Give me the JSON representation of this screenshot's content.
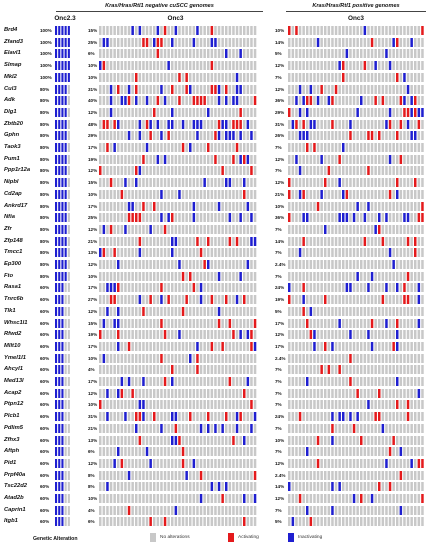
{
  "left_group_title": "Kras/Hras/Rtl1 negative cuSCC genomes",
  "right_group_title": "Kras/Hras/Rtl1 positive genomes",
  "columns": {
    "onc23": "Onc2.3",
    "onc3_left": "Onc3",
    "onc3_right": "Onc3"
  },
  "colors": {
    "none": "#c8c8c8",
    "activating": "#e41a1c",
    "inactivating": "#1f1fd0"
  },
  "legend": {
    "title": "Genetic Alteration",
    "items": [
      {
        "label": "No alterations",
        "color": "#c8c8c8"
      },
      {
        "label": "Activating",
        "color": "#e41a1c"
      },
      {
        "label": "Inactivating",
        "color": "#1f1fd0"
      }
    ]
  },
  "rows": [
    {
      "gene": "Brd4",
      "onc23_pct": "100%",
      "onc3_left_pct": "15%",
      "onc3_right_pct": "10%"
    },
    {
      "gene": "Zfand3",
      "onc23_pct": "100%",
      "onc3_left_pct": "25%",
      "onc3_right_pct": "14%"
    },
    {
      "gene": "Elavl1",
      "onc23_pct": "100%",
      "onc3_left_pct": "6%",
      "onc3_right_pct": "5%"
    },
    {
      "gene": "Slmap",
      "onc23_pct": "100%",
      "onc3_left_pct": "10%",
      "onc3_right_pct": "12%"
    },
    {
      "gene": "Mkl2",
      "onc23_pct": "100%",
      "onc3_left_pct": "10%",
      "onc3_right_pct": "7%"
    },
    {
      "gene": "Cul3",
      "onc23_pct": "80%",
      "onc3_left_pct": "31%",
      "onc3_right_pct": "12%"
    },
    {
      "gene": "Adk",
      "onc23_pct": "80%",
      "onc3_left_pct": "40%",
      "onc3_right_pct": "36%"
    },
    {
      "gene": "Dlg1",
      "onc23_pct": "80%",
      "onc3_left_pct": "12%",
      "onc3_right_pct": "29%"
    },
    {
      "gene": "Zbtb20",
      "onc23_pct": "80%",
      "onc3_left_pct": "48%",
      "onc3_right_pct": "31%"
    },
    {
      "gene": "Gphn",
      "onc23_pct": "80%",
      "onc3_left_pct": "29%",
      "onc3_right_pct": "26%"
    },
    {
      "gene": "Taok3",
      "onc23_pct": "80%",
      "onc3_left_pct": "17%",
      "onc3_right_pct": "7%"
    },
    {
      "gene": "Pum1",
      "onc23_pct": "80%",
      "onc3_left_pct": "19%",
      "onc3_right_pct": "12%"
    },
    {
      "gene": "Ppp1r12a",
      "onc23_pct": "80%",
      "onc3_left_pct": "12%",
      "onc3_right_pct": "7%"
    },
    {
      "gene": "Nipbl",
      "onc23_pct": "80%",
      "onc3_left_pct": "15%",
      "onc3_right_pct": "12%"
    },
    {
      "gene": "Cd2ap",
      "onc23_pct": "80%",
      "onc3_left_pct": "10%",
      "onc3_right_pct": "21%"
    },
    {
      "gene": "Ankrd17",
      "onc23_pct": "80%",
      "onc3_left_pct": "17%",
      "onc3_right_pct": "10%"
    },
    {
      "gene": "Nfia",
      "onc23_pct": "80%",
      "onc3_left_pct": "25%",
      "onc3_right_pct": "36%"
    },
    {
      "gene": "Zfr",
      "onc23_pct": "80%",
      "onc3_left_pct": "12%",
      "onc3_right_pct": "7%"
    },
    {
      "gene": "Zfp148",
      "onc23_pct": "80%",
      "onc3_left_pct": "21%",
      "onc3_right_pct": "14%"
    },
    {
      "gene": "Tmcc1",
      "onc23_pct": "80%",
      "onc3_left_pct": "13%",
      "onc3_right_pct": "7%"
    },
    {
      "gene": "Ep300",
      "onc23_pct": "80%",
      "onc3_left_pct": "12%",
      "onc3_right_pct": "2.4%"
    },
    {
      "gene": "Fto",
      "onc23_pct": "80%",
      "onc3_left_pct": "10%",
      "onc3_right_pct": "7%"
    },
    {
      "gene": "Rasa1",
      "onc23_pct": "60%",
      "onc3_left_pct": "17%",
      "onc3_right_pct": "24%"
    },
    {
      "gene": "Tnrc6b",
      "onc23_pct": "60%",
      "onc3_left_pct": "27%",
      "onc3_right_pct": "19%"
    },
    {
      "gene": "Tlk1",
      "onc23_pct": "60%",
      "onc3_left_pct": "12%",
      "onc3_right_pct": "5%"
    },
    {
      "gene": "Whsc1l1",
      "onc23_pct": "60%",
      "onc3_left_pct": "15%",
      "onc3_right_pct": "17%"
    },
    {
      "gene": "Rfwd2",
      "onc23_pct": "60%",
      "onc3_left_pct": "19%",
      "onc3_right_pct": "12%"
    },
    {
      "gene": "Mllt10",
      "onc23_pct": "60%",
      "onc3_left_pct": "17%",
      "onc3_right_pct": "17%"
    },
    {
      "gene": "Ymel1l1",
      "onc23_pct": "60%",
      "onc3_left_pct": "10%",
      "onc3_right_pct": "2.4%"
    },
    {
      "gene": "Ahcyl1",
      "onc23_pct": "60%",
      "onc3_left_pct": "4%",
      "onc3_right_pct": "7%"
    },
    {
      "gene": "Med13l",
      "onc23_pct": "60%",
      "onc3_left_pct": "17%",
      "onc3_right_pct": "7%"
    },
    {
      "gene": "Acap2",
      "onc23_pct": "60%",
      "onc3_left_pct": "12%",
      "onc3_right_pct": "7%"
    },
    {
      "gene": "Ptpn12",
      "onc23_pct": "60%",
      "onc3_left_pct": "10%",
      "onc3_right_pct": "7%"
    },
    {
      "gene": "Plcb1",
      "onc23_pct": "60%",
      "onc3_left_pct": "31%",
      "onc3_right_pct": "24%"
    },
    {
      "gene": "Pdlim5",
      "onc23_pct": "60%",
      "onc3_left_pct": "21%",
      "onc3_right_pct": "7%"
    },
    {
      "gene": "Zfhx3",
      "onc23_pct": "60%",
      "onc3_left_pct": "13%",
      "onc3_right_pct": "10%"
    },
    {
      "gene": "Aftph",
      "onc23_pct": "60%",
      "onc3_left_pct": "6%",
      "onc3_right_pct": "7%"
    },
    {
      "gene": "Pid1",
      "onc23_pct": "60%",
      "onc3_left_pct": "12%",
      "onc3_right_pct": "12%"
    },
    {
      "gene": "Prpf40a",
      "onc23_pct": "60%",
      "onc3_left_pct": "8%",
      "onc3_right_pct": "2.4%"
    },
    {
      "gene": "Tsc22d2",
      "onc23_pct": "60%",
      "onc3_left_pct": "8%",
      "onc3_right_pct": "14%"
    },
    {
      "gene": "Atad2b",
      "onc23_pct": "60%",
      "onc3_left_pct": "10%",
      "onc3_right_pct": "12%"
    },
    {
      "gene": "Caprin1",
      "onc23_pct": "60%",
      "onc3_left_pct": "4%",
      "onc3_right_pct": "7%"
    },
    {
      "gene": "Itgb1",
      "onc23_pct": "60%",
      "onc3_left_pct": "6%",
      "onc3_right_pct": "5%"
    }
  ]
}
